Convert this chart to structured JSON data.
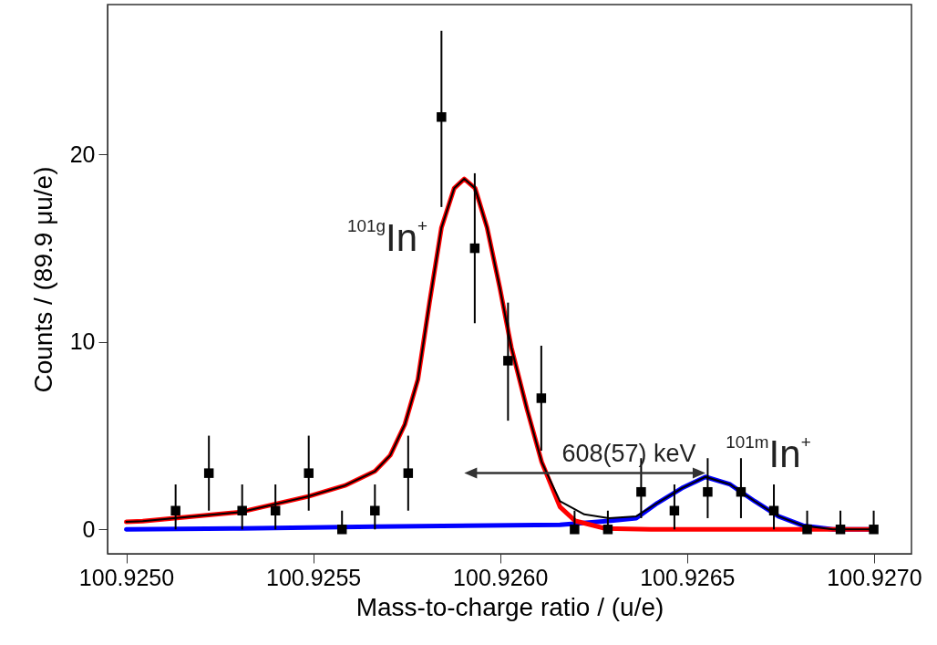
{
  "chart_data": {
    "type": "scatter",
    "xlabel": "Mass-to-charge ratio / (u/e)",
    "ylabel": "Counts / (89.9 μu/e)",
    "xlim": [
      100.92495,
      100.9271
    ],
    "ylim": [
      -1.3,
      28
    ],
    "xticks": [
      {
        "value": 100.925,
        "label": "100.9250"
      },
      {
        "value": 100.9255,
        "label": "100.9255"
      },
      {
        "value": 100.926,
        "label": "100.9260"
      },
      {
        "value": 100.9265,
        "label": "100.9265"
      },
      {
        "value": 100.927,
        "label": "100.9270"
      }
    ],
    "yticks": [
      0,
      10,
      20
    ],
    "grid": false,
    "annotations": [
      "$^{101g}$In$^{+}$",
      "608(57) keV",
      "$^{101m}$In$^{+}$"
    ],
    "series": [
      {
        "type": "line",
        "color": "#0000ff",
        "x": [
          100.925,
          100.925307,
          100.925665,
          100.92616,
          100.926291,
          100.926364,
          100.92642,
          100.926486,
          100.926549,
          100.926615,
          100.926681,
          100.926744,
          100.92681,
          100.92689,
          100.927
        ],
        "values": [
          0,
          0.05,
          0.15,
          0.25,
          0.45,
          0.6,
          1.4,
          2.2,
          2.8,
          2.4,
          1.5,
          0.7,
          0.2,
          0,
          0
        ]
      },
      {
        "type": "line",
        "color": "#000000",
        "x": [
          100.925,
          100.925044,
          100.925307,
          100.925487,
          100.925585,
          100.925665,
          100.925706,
          100.925745,
          100.92578,
          100.925811,
          100.925843,
          100.925877,
          100.925904,
          100.925933,
          100.925965,
          100.925999,
          100.92603,
          100.926072,
          100.926111,
          100.92616,
          100.926225,
          100.926291,
          100.926364,
          100.92642,
          100.926486,
          100.926549,
          100.926615,
          100.926681,
          100.926744,
          100.92681,
          100.92689,
          100.927
        ],
        "values": [
          0.4,
          0.44,
          0.93,
          1.76,
          2.34,
          3.1,
          3.95,
          5.6,
          8.0,
          12.1,
          16.1,
          18.2,
          18.7,
          18.2,
          16.1,
          12.9,
          9.7,
          6.4,
          3.6,
          1.5,
          0.8,
          0.6,
          0.7,
          1.4,
          2.2,
          2.8,
          2.4,
          1.5,
          0.7,
          0.2,
          0,
          0
        ]
      },
      {
        "type": "line",
        "color": "#ff0000",
        "x": [
          100.925,
          100.925044,
          100.925307,
          100.925487,
          100.925585,
          100.925665,
          100.925706,
          100.925745,
          100.92578,
          100.925811,
          100.925843,
          100.925877,
          100.925904,
          100.925933,
          100.925965,
          100.925999,
          100.92603,
          100.926072,
          100.926111,
          100.92616,
          100.926201,
          100.926281,
          100.926403,
          100.927
        ],
        "values": [
          0.4,
          0.44,
          0.93,
          1.76,
          2.34,
          3.1,
          3.95,
          5.6,
          8.0,
          12.1,
          16.1,
          18.2,
          18.7,
          18.2,
          16.1,
          12.9,
          9.7,
          6.4,
          3.6,
          1.2,
          0.45,
          0.05,
          0,
          0
        ]
      },
      {
        "marker": "square",
        "color": "#000000",
        "x": [
          100.925132,
          100.925221,
          100.92531,
          100.925399,
          100.925488,
          100.925577,
          100.925665,
          100.925754,
          100.925843,
          100.925932,
          100.926021,
          100.92611,
          100.926199,
          100.926288,
          100.926377,
          100.926466,
          100.926555,
          100.926644,
          100.926732,
          100.926821,
          100.92691,
          100.926999
        ],
        "values": [
          1,
          3,
          1,
          1,
          3,
          0,
          1,
          3,
          22,
          15,
          9,
          7,
          0,
          0,
          2,
          1,
          2,
          2,
          1,
          0,
          0,
          0
        ],
        "errors": [
          [
            0,
            2.4
          ],
          [
            1,
            5
          ],
          [
            0,
            2.4
          ],
          [
            0,
            2.4
          ],
          [
            1,
            5
          ],
          [
            0,
            1
          ],
          [
            0,
            2.4
          ],
          [
            1,
            5
          ],
          [
            17.2,
            26.6
          ],
          [
            11,
            19
          ],
          [
            5.8,
            12.1
          ],
          [
            4.2,
            9.8
          ],
          [
            0,
            1
          ],
          [
            0,
            1
          ],
          [
            0.6,
            3.8
          ],
          [
            0,
            2.4
          ],
          [
            0.6,
            3.8
          ],
          [
            0.6,
            3.8
          ],
          [
            0,
            2.4
          ],
          [
            0,
            1
          ],
          [
            0,
            1
          ],
          [
            0,
            1
          ]
        ]
      }
    ]
  }
}
